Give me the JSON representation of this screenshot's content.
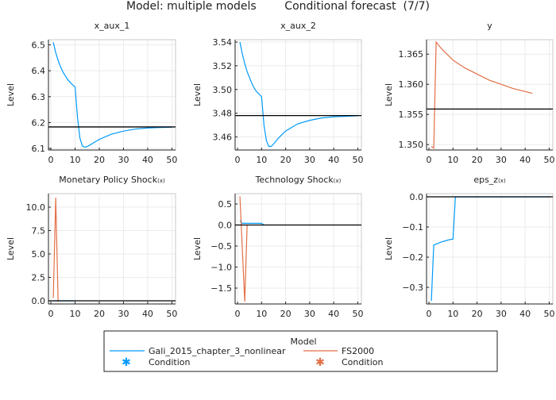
{
  "title": "Model: multiple models        Conditional forecast  (7/7)",
  "colors": {
    "model1": "#009AFA",
    "model2": "#E26F46",
    "reference": "#000000",
    "grid": "#e6e6e6"
  },
  "chart_data": [
    {
      "type": "line",
      "title": "x_aux_1",
      "title_suffix": "",
      "ylabel": "Level",
      "xlim": [
        -1,
        51.5
      ],
      "ylim": [
        6.094,
        6.52
      ],
      "xticks": [
        0,
        10,
        20,
        30,
        40,
        50
      ],
      "yticks": [
        6.1,
        6.2,
        6.3,
        6.4,
        6.5
      ],
      "ytick_labels": [
        "6.1",
        "6.2",
        "6.3",
        "6.4",
        "6.5"
      ],
      "grid": true,
      "reference": 6.183,
      "series": [
        {
          "model": "Gali_2015_chapter_3_nonlinear",
          "color": "#009AFA",
          "x": [
            1,
            2,
            3,
            4,
            5,
            6,
            7,
            8,
            9,
            10,
            11,
            12,
            13,
            14,
            15,
            17,
            20,
            25,
            30,
            35,
            40,
            45,
            50
          ],
          "y": [
            6.51,
            6.47,
            6.44,
            6.415,
            6.395,
            6.38,
            6.365,
            6.355,
            6.345,
            6.338,
            6.22,
            6.14,
            6.11,
            6.105,
            6.107,
            6.118,
            6.135,
            6.155,
            6.167,
            6.175,
            6.179,
            6.181,
            6.182
          ]
        }
      ]
    },
    {
      "type": "line",
      "title": "x_aux_2",
      "title_suffix": "",
      "ylabel": "Level",
      "xlim": [
        -1,
        51.5
      ],
      "ylim": [
        3.449,
        3.542
      ],
      "xticks": [
        0,
        10,
        20,
        30,
        40,
        50
      ],
      "yticks": [
        3.46,
        3.48,
        3.5,
        3.52,
        3.54
      ],
      "ytick_labels": [
        "3.46",
        "3.48",
        "3.50",
        "3.52",
        "3.54"
      ],
      "grid": true,
      "reference": 3.478,
      "series": [
        {
          "model": "Gali_2015_chapter_3_nonlinear",
          "color": "#009AFA",
          "x": [
            1,
            2,
            3,
            4,
            5,
            6,
            7,
            8,
            9,
            10,
            11,
            12,
            13,
            14,
            15,
            17,
            20,
            25,
            30,
            35,
            40,
            50
          ],
          "y": [
            3.54,
            3.53,
            3.522,
            3.515,
            3.51,
            3.505,
            3.501,
            3.498,
            3.496,
            3.494,
            3.47,
            3.457,
            3.452,
            3.452,
            3.454,
            3.459,
            3.465,
            3.471,
            3.474,
            3.476,
            3.477,
            3.4778
          ]
        }
      ]
    },
    {
      "type": "line",
      "title": "y",
      "title_suffix": "",
      "ylabel": "Level",
      "xlim": [
        -1,
        51.5
      ],
      "ylim": [
        1.3491,
        1.3674
      ],
      "xticks": [
        0,
        10,
        20,
        30,
        40,
        50
      ],
      "yticks": [
        1.35,
        1.355,
        1.36,
        1.365
      ],
      "ytick_labels": [
        "1.350",
        "1.355",
        "1.360",
        "1.365"
      ],
      "grid": true,
      "reference": 1.3559,
      "series": [
        {
          "model": "FS2000",
          "color": "#E26F46",
          "x": [
            1,
            2,
            3,
            5,
            10,
            15,
            20,
            25,
            30,
            35,
            40,
            43
          ],
          "y": [
            1.3497,
            1.3494,
            1.367,
            1.366,
            1.364,
            1.3627,
            1.3617,
            1.3607,
            1.36,
            1.3593,
            1.3588,
            1.3585
          ]
        }
      ]
    },
    {
      "type": "line",
      "title": "Monetary Policy Shock",
      "title_suffix": "(x)",
      "ylabel": "Level",
      "xlim": [
        -1,
        51.5
      ],
      "ylim": [
        -0.34,
        11.44
      ],
      "xticks": [
        0,
        10,
        20,
        30,
        40,
        50
      ],
      "yticks": [
        0,
        2.5,
        5,
        7.5,
        10
      ],
      "ytick_labels": [
        "0.0",
        "2.5",
        "5.0",
        "7.5",
        "10.0"
      ],
      "grid": true,
      "reference": 0,
      "series": [
        {
          "model": "Gali_2015_chapter_3_nonlinear",
          "color": "#009AFA",
          "x": [
            1,
            10
          ],
          "y": [
            0,
            0
          ]
        },
        {
          "model": "FS2000",
          "color": "#E26F46",
          "x": [
            1,
            2,
            3
          ],
          "y": [
            0.3,
            11.0,
            -0.1
          ]
        }
      ]
    },
    {
      "type": "line",
      "title": "Technology Shock",
      "title_suffix": "(x)",
      "ylabel": "Level",
      "xlim": [
        -1,
        51.5
      ],
      "ylim": [
        -1.877,
        0.745
      ],
      "xticks": [
        0,
        10,
        20,
        30,
        40,
        50
      ],
      "yticks": [
        -1.5,
        -1,
        -0.5,
        0,
        0.5
      ],
      "ytick_labels": [
        "−1.5",
        "−1.0",
        "−0.5",
        "0.0",
        "0.5"
      ],
      "grid": true,
      "reference": 0,
      "series": [
        {
          "model": "Gali_2015_chapter_3_nonlinear",
          "color": "#009AFA",
          "x": [
            1,
            2,
            10,
            11
          ],
          "y": [
            0.1,
            0.04,
            0.04,
            0
          ]
        },
        {
          "model": "FS2000",
          "color": "#E26F46",
          "x": [
            1,
            3,
            4
          ],
          "y": [
            0.68,
            -1.82,
            0
          ]
        }
      ]
    },
    {
      "type": "line",
      "title": "eps_z",
      "title_suffix": "(x)",
      "ylabel": "Level",
      "xlim": [
        -1,
        51.5
      ],
      "ylim": [
        -0.355,
        0.0105
      ],
      "xticks": [
        0,
        10,
        20,
        30,
        40,
        50
      ],
      "yticks": [
        -0.3,
        -0.2,
        -0.1,
        0
      ],
      "ytick_labels": [
        "−0.3",
        "−0.2",
        "−0.1",
        "0.0"
      ],
      "grid": true,
      "reference": 0,
      "series": [
        {
          "model": "Gali_2015_chapter_3_nonlinear",
          "color": "#009AFA",
          "x": [
            1,
            2,
            5,
            8,
            10,
            11,
            50
          ],
          "y": [
            -0.345,
            -0.16,
            -0.15,
            -0.143,
            -0.14,
            0,
            0
          ]
        }
      ]
    }
  ],
  "legend": {
    "title": "Model",
    "placement": "bottom",
    "entries": [
      {
        "label": "Gali_2015_chapter_3_nonlinear",
        "color": "#009AFA",
        "kind": "line"
      },
      {
        "label": "FS2000",
        "color": "#E26F46",
        "kind": "line"
      },
      {
        "label": "Condition",
        "color": "#009AFA",
        "kind": "star"
      },
      {
        "label": "Condition",
        "color": "#E26F46",
        "kind": "star"
      }
    ]
  }
}
